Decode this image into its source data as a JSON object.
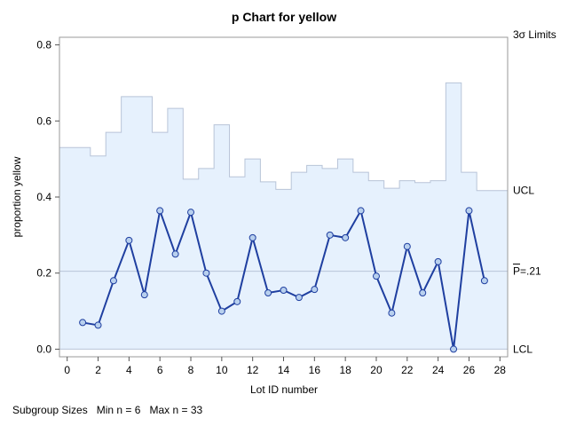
{
  "chart_data": {
    "type": "line",
    "title": "p Chart for yellow",
    "xlabel": "Lot ID number",
    "ylabel": "proportion yellow",
    "xlim": [
      -0.5,
      28.5
    ],
    "ylim": [
      -0.02,
      0.82
    ],
    "xticks": [
      0,
      2,
      4,
      6,
      8,
      10,
      12,
      14,
      16,
      18,
      20,
      22,
      24,
      26,
      28
    ],
    "yticks": [
      0.0,
      0.2,
      0.4,
      0.6,
      0.8
    ],
    "ytick_labels": [
      "0.0",
      "0.2",
      "0.4",
      "0.6",
      "0.8"
    ],
    "x": [
      1,
      2,
      3,
      4,
      5,
      6,
      7,
      8,
      9,
      10,
      11,
      12,
      13,
      14,
      15,
      16,
      17,
      18,
      19,
      20,
      21,
      22,
      23,
      24,
      25,
      26,
      27
    ],
    "series": [
      {
        "values": [
          0.07,
          0.063,
          0.18,
          0.286,
          0.143,
          0.364,
          0.25,
          0.36,
          0.2,
          0.1,
          0.125,
          0.293,
          0.148,
          0.155,
          0.136,
          0.157,
          0.3,
          0.293,
          0.364,
          0.192,
          0.095,
          0.27,
          0.148,
          0.23,
          0.0,
          0.364,
          0.18
        ],
        "color": "#1f3fa0"
      }
    ],
    "center_line": 0.205,
    "lcl": 0.0,
    "ucl_steps": [
      0.53,
      0.508,
      0.57,
      0.664,
      0.664,
      0.57,
      0.633,
      0.447,
      0.475,
      0.59,
      0.453,
      0.5,
      0.44,
      0.42,
      0.465,
      0.483,
      0.475,
      0.5,
      0.465,
      0.443,
      0.423,
      0.443,
      0.438,
      0.443,
      0.7,
      0.465,
      0.417,
      0.417
    ],
    "limits_label": "3σ Limits",
    "ucl_label": "UCL",
    "center_label": "P=.21",
    "lcl_label": "LCL",
    "band_color": "#e6f1fd",
    "band_edge_color": "#b8c4d8",
    "point_fill": "#b8d0ee",
    "grid": false
  },
  "footer": {
    "label": "Subgroup Sizes",
    "min": "Min n = 6",
    "max": "Max n = 33"
  }
}
